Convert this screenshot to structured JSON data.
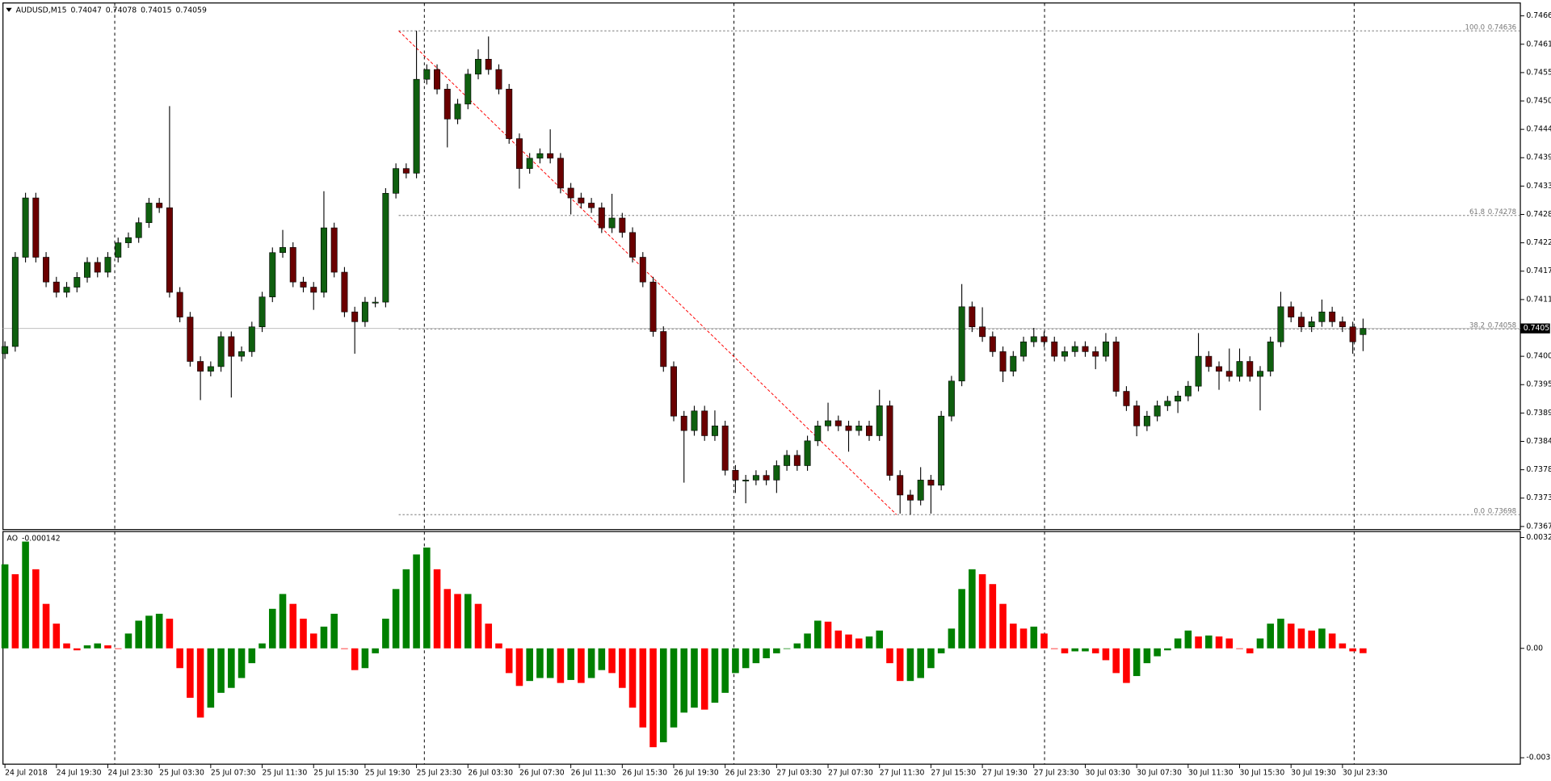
{
  "chart_data": [
    {
      "type": "candlestick",
      "symbol": "AUDUSD,M15",
      "categories": [
        "24 Jul 2018",
        null,
        null,
        null,
        null,
        "24 Jul 19:30",
        null,
        null,
        null,
        null,
        "24 Jul 23:30",
        null,
        null,
        null,
        null,
        "25 Jul 03:30",
        null,
        null,
        null,
        null,
        "25 Jul 07:30",
        null,
        null,
        null,
        null,
        "25 Jul 11:30",
        null,
        null,
        null,
        null,
        "25 Jul 15:30",
        null,
        null,
        null,
        null,
        "25 Jul 19:30",
        null,
        null,
        null,
        null,
        "25 Jul 23:30",
        null,
        null,
        null,
        null,
        "26 Jul 03:30",
        null,
        null,
        null,
        null,
        "26 Jul 07:30",
        null,
        null,
        null,
        null,
        "26 Jul 11:30",
        null,
        null,
        null,
        null,
        "26 Jul 15:30",
        null,
        null,
        null,
        null,
        "26 Jul 19:30",
        null,
        null,
        null,
        null,
        "26 Jul 23:30",
        null,
        null,
        null,
        null,
        "27 Jul 03:30",
        null,
        null,
        null,
        null,
        "27 Jul 07:30",
        null,
        null,
        null,
        null,
        "27 Jul 11:30",
        null,
        null,
        null,
        null,
        "27 Jul 15:30",
        null,
        null,
        null,
        null,
        "27 Jul 19:30",
        null,
        null,
        null,
        null,
        "27 Jul 23:30",
        null,
        null,
        null,
        null,
        "30 Jul 03:30",
        null,
        null,
        null,
        null,
        "30 Jul 07:30",
        null,
        null,
        null,
        null,
        "30 Jul 11:30",
        null,
        null,
        null,
        null,
        "30 Jul 15:30",
        null,
        null,
        null,
        null,
        "30 Jul 19:30",
        null,
        null,
        null,
        null,
        "30 Jul 23:30",
        null,
        null
      ],
      "open": [
        0.7401,
        0.74024,
        0.74197,
        0.74312,
        0.74197,
        0.74149,
        0.74129,
        0.74139,
        0.74158,
        0.74187,
        0.74168,
        0.74197,
        0.74225,
        0.74235,
        0.74264,
        0.74302,
        0.74293,
        0.74129,
        0.74081,
        0.73995,
        0.73976,
        0.73985,
        0.74043,
        0.74005,
        0.74014,
        0.74062,
        0.7412,
        0.74206,
        0.74216,
        0.74149,
        0.74139,
        0.74129,
        0.74254,
        0.74168,
        0.74091,
        0.74072,
        0.7411,
        0.7411,
        0.74321,
        0.74369,
        0.7436,
        0.74542,
        0.74561,
        0.74523,
        0.74465,
        0.74494,
        0.74552,
        0.74581,
        0.74561,
        0.74523,
        0.74427,
        0.74369,
        0.74389,
        0.74398,
        0.74389,
        0.74331,
        0.74312,
        0.74302,
        0.74293,
        0.74254,
        0.74273,
        0.74245,
        0.74197,
        0.74149,
        0.74053,
        0.73985,
        0.73889,
        0.73861,
        0.73899,
        0.73851,
        0.7387,
        0.73784,
        0.73765,
        0.73765,
        0.73774,
        0.73765,
        0.73793,
        0.73813,
        0.73793,
        0.73841,
        0.7387,
        0.7388,
        0.7387,
        0.73861,
        0.7387,
        0.73851,
        0.73909,
        0.73774,
        0.73736,
        0.73726,
        0.73765,
        0.73755,
        0.73889,
        0.73957,
        0.74101,
        0.74062,
        0.74043,
        0.74014,
        0.73976,
        0.74005,
        0.74033,
        0.74043,
        0.74033,
        0.74005,
        0.74014,
        0.74024,
        0.74014,
        0.74005,
        0.74033,
        0.73937,
        0.73909,
        0.7387,
        0.73889,
        0.73909,
        0.73918,
        0.73928,
        0.73947,
        0.74005,
        0.73985,
        0.73976,
        0.73966,
        0.73995,
        0.73966,
        0.73976,
        0.74033,
        0.74101,
        0.74081,
        0.74062,
        0.74072,
        0.74091,
        0.74072,
        0.74062,
        0.74047
      ],
      "high": [
        0.74034,
        0.74207,
        0.74322,
        0.74322,
        0.74207,
        0.74159,
        0.74149,
        0.74168,
        0.74197,
        0.74197,
        0.74207,
        0.74235,
        0.74245,
        0.74274,
        0.74312,
        0.74312,
        0.7449,
        0.74139,
        0.74091,
        0.74005,
        0.73995,
        0.74053,
        0.74053,
        0.74024,
        0.74072,
        0.7413,
        0.74216,
        0.7425,
        0.74226,
        0.74159,
        0.74149,
        0.74325,
        0.74264,
        0.74178,
        0.74101,
        0.7412,
        0.7412,
        0.74331,
        0.74379,
        0.74379,
        0.74636,
        0.74571,
        0.74571,
        0.74533,
        0.74504,
        0.74562,
        0.746,
        0.74625,
        0.74571,
        0.74533,
        0.74437,
        0.74399,
        0.74408,
        0.74445,
        0.74399,
        0.74341,
        0.74322,
        0.74312,
        0.74303,
        0.7432,
        0.74283,
        0.74255,
        0.74207,
        0.74159,
        0.74063,
        0.73995,
        0.73899,
        0.73909,
        0.73909,
        0.739,
        0.7388,
        0.73794,
        0.73775,
        0.73784,
        0.73784,
        0.73803,
        0.73823,
        0.73823,
        0.73851,
        0.7388,
        0.73915,
        0.7389,
        0.7388,
        0.7388,
        0.7388,
        0.7394,
        0.73919,
        0.73784,
        0.73746,
        0.7379,
        0.73775,
        0.73899,
        0.73967,
        0.74145,
        0.74111,
        0.741,
        0.74053,
        0.74024,
        0.74015,
        0.74043,
        0.7406,
        0.74053,
        0.74043,
        0.74024,
        0.74034,
        0.74034,
        0.74024,
        0.7405,
        0.74043,
        0.73947,
        0.73919,
        0.73899,
        0.73919,
        0.73928,
        0.73938,
        0.73957,
        0.7405,
        0.74015,
        0.73995,
        0.7402,
        0.7402,
        0.74005,
        0.73986,
        0.74043,
        0.7413,
        0.74111,
        0.74091,
        0.74082,
        0.74115,
        0.74101,
        0.74082,
        0.74072,
        0.74078
      ],
      "low": [
        0.74,
        0.74014,
        0.74187,
        0.74187,
        0.74139,
        0.74119,
        0.74119,
        0.74129,
        0.74148,
        0.74158,
        0.74158,
        0.74187,
        0.74215,
        0.74225,
        0.74254,
        0.74283,
        0.74119,
        0.74071,
        0.73985,
        0.7392,
        0.73966,
        0.73975,
        0.73925,
        0.73995,
        0.74004,
        0.74052,
        0.7411,
        0.74196,
        0.74139,
        0.74129,
        0.74095,
        0.74119,
        0.74158,
        0.74081,
        0.7401,
        0.74062,
        0.741,
        0.741,
        0.74311,
        0.7435,
        0.7435,
        0.74532,
        0.74513,
        0.7441,
        0.74455,
        0.74484,
        0.74542,
        0.74551,
        0.74513,
        0.74417,
        0.7433,
        0.74359,
        0.74379,
        0.74379,
        0.74321,
        0.7428,
        0.74292,
        0.74283,
        0.74244,
        0.74244,
        0.74235,
        0.74187,
        0.74139,
        0.74043,
        0.73975,
        0.73879,
        0.7376,
        0.73851,
        0.73841,
        0.73841,
        0.73774,
        0.7374,
        0.7372,
        0.73755,
        0.73755,
        0.7374,
        0.73783,
        0.73783,
        0.73783,
        0.73831,
        0.7386,
        0.7386,
        0.7382,
        0.73851,
        0.73841,
        0.73841,
        0.73764,
        0.737,
        0.73698,
        0.73716,
        0.737,
        0.73745,
        0.73879,
        0.73947,
        0.74052,
        0.74033,
        0.74004,
        0.73955,
        0.73966,
        0.73995,
        0.74023,
        0.74023,
        0.73995,
        0.73995,
        0.74004,
        0.74004,
        0.7398,
        0.73995,
        0.73927,
        0.73899,
        0.7385,
        0.7386,
        0.73879,
        0.73899,
        0.73895,
        0.73918,
        0.73937,
        0.73975,
        0.7394,
        0.73956,
        0.73956,
        0.73956,
        0.739,
        0.73966,
        0.74023,
        0.74071,
        0.74052,
        0.74052,
        0.74062,
        0.74062,
        0.74052,
        0.7401,
        0.74015
      ],
      "close": [
        0.74024,
        0.74197,
        0.74312,
        0.74197,
        0.74149,
        0.74129,
        0.74139,
        0.74158,
        0.74187,
        0.74168,
        0.74197,
        0.74225,
        0.74235,
        0.74264,
        0.74302,
        0.74293,
        0.74129,
        0.74081,
        0.73995,
        0.73976,
        0.73985,
        0.74043,
        0.74005,
        0.74014,
        0.74062,
        0.7412,
        0.74206,
        0.74216,
        0.74149,
        0.74139,
        0.74129,
        0.74254,
        0.74168,
        0.74091,
        0.74072,
        0.7411,
        0.7411,
        0.74321,
        0.74369,
        0.7436,
        0.74542,
        0.74561,
        0.74523,
        0.74465,
        0.74494,
        0.74552,
        0.74581,
        0.74561,
        0.74523,
        0.74427,
        0.74369,
        0.74389,
        0.74398,
        0.74389,
        0.74331,
        0.74312,
        0.74302,
        0.74293,
        0.74254,
        0.74273,
        0.74245,
        0.74197,
        0.74149,
        0.74053,
        0.73985,
        0.73889,
        0.73861,
        0.73899,
        0.73851,
        0.7387,
        0.73784,
        0.73765,
        0.73765,
        0.73774,
        0.73765,
        0.73793,
        0.73813,
        0.73793,
        0.73841,
        0.7387,
        0.7388,
        0.7387,
        0.73861,
        0.7387,
        0.73851,
        0.73909,
        0.73774,
        0.73736,
        0.73726,
        0.73765,
        0.73755,
        0.73889,
        0.73957,
        0.74101,
        0.74062,
        0.74043,
        0.74014,
        0.73976,
        0.74005,
        0.74033,
        0.74043,
        0.74033,
        0.74005,
        0.74014,
        0.74024,
        0.74014,
        0.74005,
        0.74033,
        0.73937,
        0.73909,
        0.7387,
        0.73889,
        0.73909,
        0.73918,
        0.73928,
        0.73947,
        0.74005,
        0.73985,
        0.73976,
        0.73966,
        0.73995,
        0.73966,
        0.73976,
        0.74033,
        0.74101,
        0.74081,
        0.74062,
        0.74072,
        0.74091,
        0.74072,
        0.74062,
        0.74033,
        0.74059
      ],
      "up_color": "#0f5f0f",
      "down_color": "#6a0000",
      "ylim": [
        0.73669,
        0.7469
      ],
      "yticks": [
        0.74665,
        {
          "value": 0.7461,
          "label": "0.74610"
        },
        0.74555,
        {
          "value": 0.745,
          "label": "0.74500"
        },
        0.74445,
        {
          "value": 0.7439,
          "label": "0.74390"
        },
        0.74335,
        {
          "value": 0.7428,
          "label": "0.74280"
        },
        0.74225,
        {
          "value": 0.7417,
          "label": "0.74170"
        },
        0.74115,
        0.74005,
        {
          "value": 0.7395,
          "label": "0.73950"
        },
        0.73895,
        {
          "value": 0.7384,
          "label": "0.73840"
        },
        0.73785,
        {
          "value": 0.7373,
          "label": "0.73730"
        },
        0.73675
      ],
      "fibonacci": [
        {
          "level": "100.0",
          "price": 0.74636
        },
        {
          "level": "61.8",
          "price": 0.74278
        },
        {
          "level": "38.2",
          "price": 0.74058
        },
        {
          "level": "0.0",
          "price": 0.73698
        }
      ],
      "fib_color": "#ff0000"
    },
    {
      "type": "bar",
      "title": "AO",
      "values": [
        0.002482,
        0.00219,
        0.003154,
        0.002336,
        0.001314,
        0.00073,
        0.000146,
        -5.8e-05,
        8.8e-05,
        0.000146,
        8.8e-05,
        0,
        0.000438,
        0.000818,
        0.000964,
        0.001022,
        0.000876,
        -0.000584,
        -0.00146,
        -0.002044,
        -0.001752,
        -0.001314,
        -0.001168,
        -0.000876,
        -0.000438,
        0.000146,
        0.001168,
        0.001606,
        0.001314,
        0.000876,
        0.000438,
        0.000642,
        0.001022,
        0,
        -0.000642,
        -0.000584,
        -0.000146,
        0.000876,
        0.001752,
        0.002336,
        0.002774,
        0.002978,
        0.002336,
        0.001752,
        0.001606,
        0.001606,
        0.001314,
        0.00073,
        0.000146,
        -0.00073,
        -0.00111,
        -0.000964,
        -0.000876,
        -0.000876,
        -0.001022,
        -0.000934,
        -0.001022,
        -0.000876,
        -0.000642,
        -0.00073,
        -0.001168,
        -0.001752,
        -0.002336,
        -0.00292,
        -0.002774,
        -0.002336,
        -0.001898,
        -0.001752,
        -0.00181,
        -0.001606,
        -0.001314,
        -0.00073,
        -0.000584,
        -0.000438,
        -0.000292,
        -0.000146,
        0,
        0.000146,
        0.000438,
        0.000818,
        0.000788,
        0.000526,
        0.000409,
        0.000292,
        0.00035,
        0.000526,
        -0.000438,
        -0.000964,
        -0.000964,
        -0.000876,
        -0.000584,
        -0.000146,
        0.000584,
        0.001752,
        0.002336,
        0.00219,
        0.001898,
        0.001314,
        0.00073,
        0.000584,
        0.000642,
        0.000438,
        0,
        -0.000146,
        -8.8e-05,
        -8.8e-05,
        -0.000146,
        -0.00035,
        -0.00073,
        -0.001022,
        -0.000818,
        -0.000438,
        -0.000234,
        -5.8e-05,
        0.000292,
        0.000526,
        0.00035,
        0.00038,
        0.00035,
        0.000292,
        0,
        -0.000146,
        0.000292,
        0.00073,
        0.000876,
        0.00073,
        0.000584,
        0.000526,
        0.000584,
        0.000438,
        0.000146,
        -8.8e-05,
        -0.000142
      ],
      "up_color": "#008000",
      "down_color": "#ff0000",
      "ylim": [
        -0.003421,
        0.00345
      ],
      "yticks": [
        0.003275,
        {
          "value": 0,
          "label": "0.00"
        },
        -0.003231
      ]
    }
  ]
}
